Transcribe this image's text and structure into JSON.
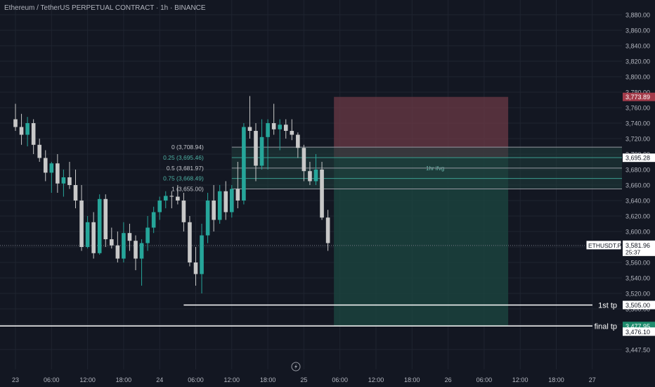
{
  "header": {
    "title": "Ethereum / TetherUS PERPETUAL CONTRACT · 1h · BINANCE"
  },
  "colors": {
    "background": "#131722",
    "up": "#26a69a",
    "down": "#c8c8c8",
    "grid": "#1f2430",
    "axis_text": "#b2b5be",
    "stop_zone": "#6b3a45",
    "target_zone": "#1c4540",
    "fib_line": "#8a8e99",
    "fvg_fill": "#1f3e3d"
  },
  "chart_data": {
    "type": "candlestick",
    "symbol_label": "ETHUSDT.P",
    "y_ticks": [
      "3,880.00",
      "3,860.00",
      "3,840.00",
      "3,820.00",
      "3,800.00",
      "3,780.00",
      "3,760.00",
      "3,740.00",
      "3,720.00",
      "3,700.00",
      "3,680.00",
      "3,660.00",
      "3,640.00",
      "3,620.00",
      "3,600.00",
      "3,580.00",
      "3,560.00",
      "3,540.00",
      "3,520.00",
      "3,500.00",
      "3,480.00",
      "3,447.50"
    ],
    "y_tick_values": [
      3880,
      3860,
      3840,
      3820,
      3800,
      3780,
      3760,
      3740,
      3720,
      3700,
      3680,
      3660,
      3640,
      3620,
      3600,
      3580,
      3560,
      3540,
      3520,
      3500,
      3480,
      3447.5
    ],
    "x_ticks": [
      {
        "label": "23",
        "index": 0
      },
      {
        "label": "06:00",
        "index": 6
      },
      {
        "label": "12:00",
        "index": 12
      },
      {
        "label": "18:00",
        "index": 18
      },
      {
        "label": "24",
        "index": 24
      },
      {
        "label": "06:00",
        "index": 30
      },
      {
        "label": "12:00",
        "index": 36
      },
      {
        "label": "18:00",
        "index": 42
      },
      {
        "label": "25",
        "index": 48
      },
      {
        "label": "06:00",
        "index": 54
      },
      {
        "label": "12:00",
        "index": 60
      },
      {
        "label": "18:00",
        "index": 66
      },
      {
        "label": "26",
        "index": 72
      },
      {
        "label": "06:00",
        "index": 78
      },
      {
        "label": "12:00",
        "index": 84
      },
      {
        "label": "18:00",
        "index": 90
      },
      {
        "label": "27",
        "index": 96
      }
    ],
    "candles": [
      [
        3745,
        3765,
        3730,
        3735
      ],
      [
        3735,
        3752,
        3712,
        3725
      ],
      [
        3725,
        3748,
        3710,
        3740
      ],
      [
        3740,
        3745,
        3700,
        3712
      ],
      [
        3712,
        3720,
        3690,
        3695
      ],
      [
        3695,
        3705,
        3665,
        3676
      ],
      [
        3676,
        3690,
        3650,
        3688
      ],
      [
        3688,
        3700,
        3650,
        3662
      ],
      [
        3662,
        3680,
        3645,
        3670
      ],
      [
        3670,
        3690,
        3655,
        3660
      ],
      [
        3660,
        3680,
        3630,
        3640
      ],
      [
        3640,
        3660,
        3575,
        3580
      ],
      [
        3580,
        3620,
        3578,
        3612
      ],
      [
        3612,
        3625,
        3565,
        3572
      ],
      [
        3572,
        3648,
        3570,
        3642
      ],
      [
        3642,
        3648,
        3580,
        3590
      ],
      [
        3590,
        3605,
        3578,
        3582
      ],
      [
        3582,
        3600,
        3560,
        3565
      ],
      [
        3565,
        3612,
        3560,
        3598
      ],
      [
        3598,
        3610,
        3575,
        3588
      ],
      [
        3588,
        3595,
        3550,
        3565
      ],
      [
        3565,
        3590,
        3530,
        3585
      ],
      [
        3585,
        3620,
        3575,
        3605
      ],
      [
        3605,
        3632,
        3598,
        3625
      ],
      [
        3625,
        3645,
        3615,
        3640
      ],
      [
        3640,
        3652,
        3630,
        3646
      ],
      [
        3646,
        3652,
        3630,
        3645
      ],
      [
        3645,
        3660,
        3635,
        3640
      ],
      [
        3640,
        3650,
        3600,
        3612
      ],
      [
        3612,
        3620,
        3555,
        3560
      ],
      [
        3560,
        3580,
        3530,
        3545
      ],
      [
        3545,
        3610,
        3520,
        3595
      ],
      [
        3595,
        3650,
        3585,
        3640
      ],
      [
        3640,
        3660,
        3600,
        3615
      ],
      [
        3615,
        3660,
        3610,
        3652
      ],
      [
        3652,
        3665,
        3615,
        3625
      ],
      [
        3625,
        3660,
        3618,
        3655
      ],
      [
        3655,
        3690,
        3630,
        3640
      ],
      [
        3640,
        3740,
        3635,
        3735
      ],
      [
        3735,
        3775,
        3720,
        3730
      ],
      [
        3730,
        3740,
        3665,
        3685
      ],
      [
        3685,
        3745,
        3680,
        3722
      ],
      [
        3722,
        3745,
        3680,
        3740
      ],
      [
        3740,
        3765,
        3725,
        3732
      ],
      [
        3732,
        3745,
        3705,
        3738
      ],
      [
        3738,
        3745,
        3720,
        3730
      ],
      [
        3730,
        3745,
        3718,
        3725
      ],
      [
        3725,
        3728,
        3695,
        3708
      ],
      [
        3708,
        3712,
        3665,
        3678
      ],
      [
        3678,
        3690,
        3660,
        3665
      ],
      [
        3665,
        3700,
        3660,
        3680
      ],
      [
        3680,
        3690,
        3615,
        3618
      ],
      [
        3618,
        3628,
        3575,
        3585
      ]
    ],
    "current_price": {
      "value": 3581.96,
      "label": "3,581.96",
      "countdown": "25:37"
    },
    "fib_levels": [
      {
        "text": "0 (3,708.94)",
        "value": 3708.94
      },
      {
        "text": "0.25 (3,695.46)",
        "value": 3695.46
      },
      {
        "text": "0.5 (3,681.97)",
        "value": 3681.97
      },
      {
        "text": "0.75 (3,668.49)",
        "value": 3668.49
      },
      {
        "text": "1 (3,655.00)",
        "value": 3655.0
      }
    ],
    "fvg": {
      "label": "1hr ifvg",
      "top": 3708.94,
      "bottom": 3655.0
    },
    "position": {
      "stop": 3773.89,
      "stop_label": "3,773.89",
      "entry": 3695.28,
      "entry_label": "3,695.28",
      "target": 3477.95,
      "start_index": 53,
      "end_index": 82
    },
    "targets": [
      {
        "name": "1st tp",
        "value": 3505.0,
        "label": "3,505.00",
        "start_index": 28
      },
      {
        "name": "final tp",
        "value": 3477.95,
        "label": "3,477.95",
        "start_index": -4
      }
    ],
    "extra_price_label": {
      "value": 3476.1,
      "label": "3,476.10"
    }
  }
}
